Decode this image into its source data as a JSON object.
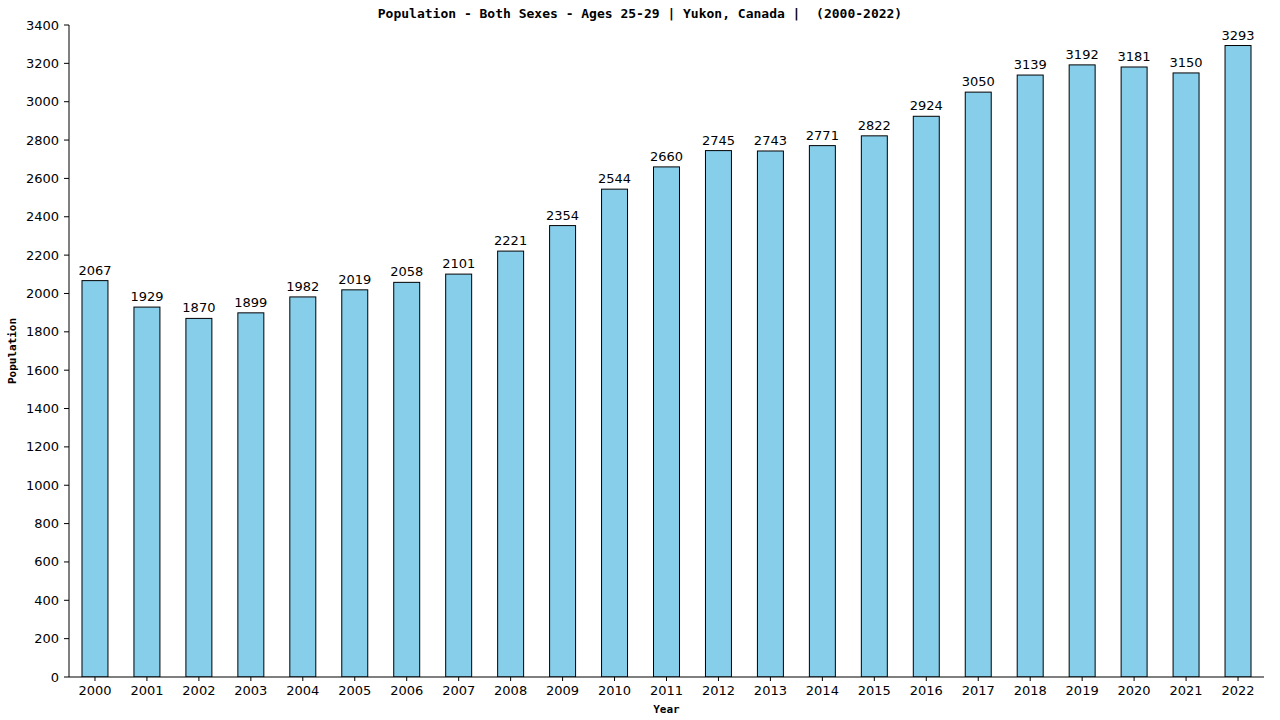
{
  "chart_data": {
    "type": "bar",
    "title": "Population - Both Sexes - Ages 25-29 | Yukon, Canada |  (2000-2022)",
    "x_label": "Year",
    "y_label": "Population",
    "categories": [
      "2000",
      "2001",
      "2002",
      "2003",
      "2004",
      "2005",
      "2006",
      "2007",
      "2008",
      "2009",
      "2010",
      "2011",
      "2012",
      "2013",
      "2014",
      "2015",
      "2016",
      "2017",
      "2018",
      "2019",
      "2020",
      "2021",
      "2022"
    ],
    "values": [
      2067,
      1929,
      1870,
      1899,
      1982,
      2019,
      2058,
      2101,
      2221,
      2354,
      2544,
      2660,
      2745,
      2743,
      2771,
      2822,
      2924,
      3050,
      3139,
      3192,
      3181,
      3150,
      3293
    ],
    "color": "#87ceeb",
    "ylim": [
      0,
      3400
    ],
    "yticks": [
      0,
      200,
      400,
      600,
      800,
      1000,
      1200,
      1400,
      1600,
      1800,
      2000,
      2200,
      2400,
      2600,
      2800,
      3000,
      3200,
      3400
    ],
    "grid": false,
    "data_labels": true
  }
}
